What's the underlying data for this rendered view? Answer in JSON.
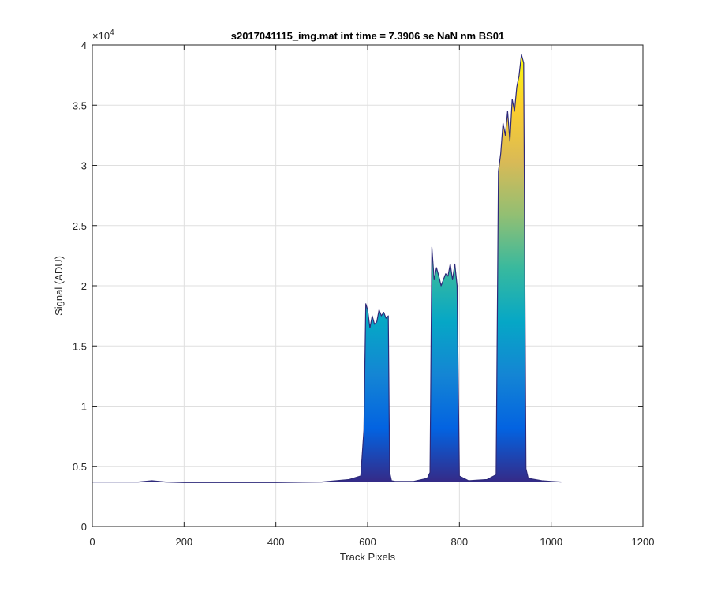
{
  "chart_data": {
    "type": "area",
    "title": "s2017041115_img.mat int time = 7.3906 se  NaN nm BS01",
    "xlabel": "Track Pixels",
    "ylabel": "Signal (ADU)",
    "y_exponent_label": "×10",
    "y_exponent_power": "4",
    "xlim": [
      0,
      1200
    ],
    "ylim": [
      0,
      40000
    ],
    "grid": true,
    "x_ticks": [
      0,
      200,
      400,
      600,
      800,
      1000,
      1200
    ],
    "y_ticks": [
      0,
      5000,
      10000,
      15000,
      20000,
      25000,
      30000,
      35000,
      40000
    ],
    "x_tick_labels": [
      "0",
      "200",
      "400",
      "600",
      "800",
      "1000",
      "1200"
    ],
    "y_tick_labels": [
      "0",
      "0.5",
      "1",
      "1.5",
      "2",
      "2.5",
      "3",
      "3.5",
      "4"
    ],
    "colormap": [
      "#352a87",
      "#0363e1",
      "#1485d4",
      "#06a7c6",
      "#38b99e",
      "#92bf73",
      "#d9ba56",
      "#fcce2e",
      "#f9fb0e"
    ],
    "baseline": 3700,
    "series": [
      {
        "x": [
          0,
          100,
          130,
          160,
          200,
          300,
          400,
          500,
          560,
          585,
          592,
          596,
          600,
          605,
          610,
          615,
          620,
          625,
          630,
          635,
          640,
          645,
          648,
          652,
          660,
          700,
          730,
          736,
          740,
          745,
          750,
          755,
          760,
          765,
          770,
          775,
          780,
          785,
          790,
          795,
          800,
          820,
          860,
          880,
          885,
          890,
          895,
          900,
          905,
          910,
          915,
          920,
          925,
          930,
          935,
          940,
          945,
          950,
          980,
          1000,
          1022
        ],
        "y": [
          3700,
          3700,
          3800,
          3700,
          3650,
          3650,
          3650,
          3700,
          3900,
          4200,
          8000,
          18500,
          18000,
          16500,
          17500,
          16800,
          17000,
          18000,
          17500,
          17800,
          17300,
          17500,
          4500,
          3800,
          3750,
          3750,
          4000,
          4500,
          23200,
          20500,
          21500,
          20800,
          20000,
          20500,
          21000,
          20800,
          21800,
          20500,
          21800,
          20000,
          4200,
          3800,
          3900,
          4300,
          29500,
          31000,
          33500,
          32500,
          34500,
          32000,
          35500,
          34500,
          36500,
          37500,
          39200,
          38500,
          4800,
          4000,
          3800,
          3750,
          3700
        ]
      }
    ]
  }
}
